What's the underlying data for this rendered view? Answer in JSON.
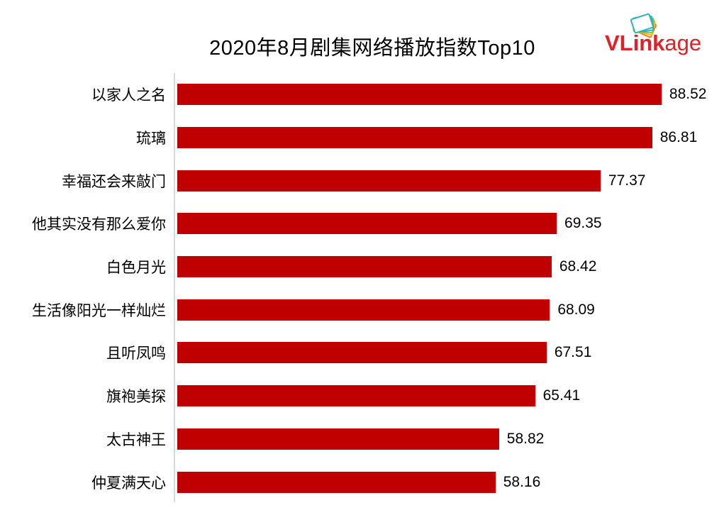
{
  "header": {
    "title": "2020年8月剧集网络播放指数Top10",
    "logo": {
      "bold": "VLink",
      "rest": "age",
      "color": "#E02128"
    }
  },
  "chart_data": {
    "type": "bar",
    "orientation": "horizontal",
    "title": "2020年8月剧集网络播放指数Top10",
    "categories": [
      "以家人之名",
      "琉璃",
      "幸福还会来敲门",
      "他其实没有那么爱你",
      "白色月光",
      "生活像阳光一样灿烂",
      "且听凤鸣",
      "旗袍美探",
      "太古神王",
      "仲夏满天心"
    ],
    "values": [
      88.52,
      86.81,
      77.37,
      69.35,
      68.42,
      68.09,
      67.51,
      65.41,
      58.82,
      58.16
    ],
    "value_labels": [
      "88.52",
      "86.81",
      "77.37",
      "69.35",
      "68.42",
      "68.09",
      "67.51",
      "65.41",
      "58.82",
      "58.16"
    ],
    "xlim": [
      0,
      100
    ],
    "xlabel": "",
    "ylabel": "",
    "grid": false,
    "legend": false,
    "bar_color": "#C00000",
    "axis_line_color": "#D9D9D9",
    "text_color": "#000000"
  }
}
